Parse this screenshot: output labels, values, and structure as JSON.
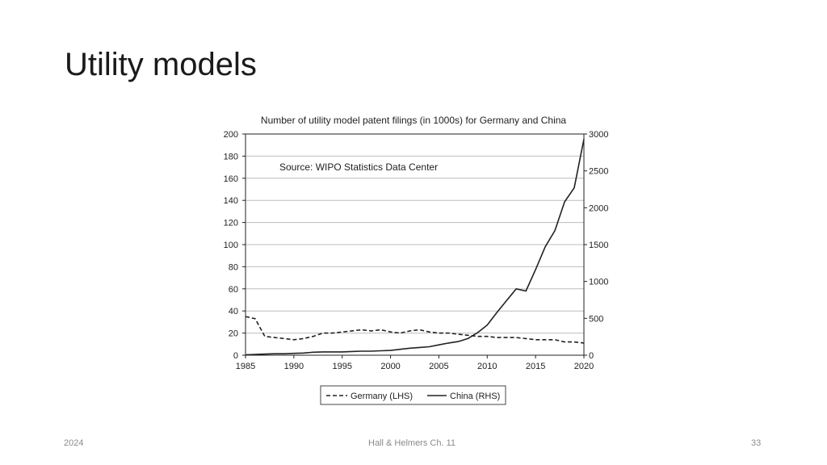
{
  "slide": {
    "title": "Utility models",
    "footer_left": "2024",
    "footer_center": "Hall & Helmers Ch. 11",
    "footer_right": "33"
  },
  "chart_data": {
    "type": "line",
    "title": "Number of utility model patent filings (in 1000s) for Germany and China",
    "annotation": "Source: WIPO Statistics Data Center",
    "xlim": [
      1985,
      2020
    ],
    "x_ticks": [
      "1985",
      "1990",
      "1995",
      "2000",
      "2005",
      "2010",
      "2015",
      "2020"
    ],
    "y_left": {
      "lim": [
        0,
        200
      ],
      "ticks": [
        "0",
        "20",
        "40",
        "60",
        "80",
        "100",
        "120",
        "140",
        "160",
        "180",
        "200"
      ]
    },
    "y_right": {
      "lim": [
        0,
        3000
      ],
      "ticks": [
        "0",
        "500",
        "1000",
        "1500",
        "2000",
        "2500",
        "3000"
      ]
    },
    "grid": true,
    "legend_position": "bottom-center",
    "colors": {
      "line": "#222222",
      "grid": "#bdbdbd",
      "axis": "#222222"
    },
    "series": [
      {
        "name": "Germany (LHS)",
        "axis": "left",
        "style": "dashed",
        "x": [
          1985,
          1986,
          1987,
          1988,
          1989,
          1990,
          1991,
          1992,
          1993,
          1994,
          1995,
          1996,
          1997,
          1998,
          1999,
          2000,
          2001,
          2002,
          2003,
          2004,
          2005,
          2006,
          2007,
          2008,
          2009,
          2010,
          2011,
          2012,
          2013,
          2014,
          2015,
          2016,
          2017,
          2018,
          2019,
          2020
        ],
        "values": [
          35,
          33,
          17,
          16,
          15,
          14,
          15,
          17,
          20,
          20,
          21,
          22,
          23,
          22,
          23,
          21,
          20,
          22,
          23,
          21,
          20,
          20,
          19,
          18,
          17,
          17,
          16,
          16,
          16,
          15,
          14,
          14,
          14,
          12,
          12,
          11
        ]
      },
      {
        "name": "China (RHS)",
        "axis": "right",
        "style": "solid",
        "x": [
          1985,
          1986,
          1987,
          1988,
          1989,
          1990,
          1991,
          1992,
          1993,
          1994,
          1995,
          1996,
          1997,
          1998,
          1999,
          2000,
          2001,
          2002,
          2003,
          2004,
          2005,
          2006,
          2007,
          2008,
          2009,
          2010,
          2011,
          2012,
          2013,
          2014,
          2015,
          2016,
          2017,
          2018,
          2019,
          2020
        ],
        "values": [
          5,
          10,
          15,
          20,
          20,
          25,
          30,
          40,
          45,
          45,
          45,
          50,
          55,
          55,
          60,
          65,
          80,
          95,
          105,
          115,
          140,
          165,
          185,
          225,
          305,
          410,
          580,
          740,
          900,
          870,
          1160,
          1470,
          1690,
          2080,
          2270,
          2930
        ]
      }
    ]
  }
}
